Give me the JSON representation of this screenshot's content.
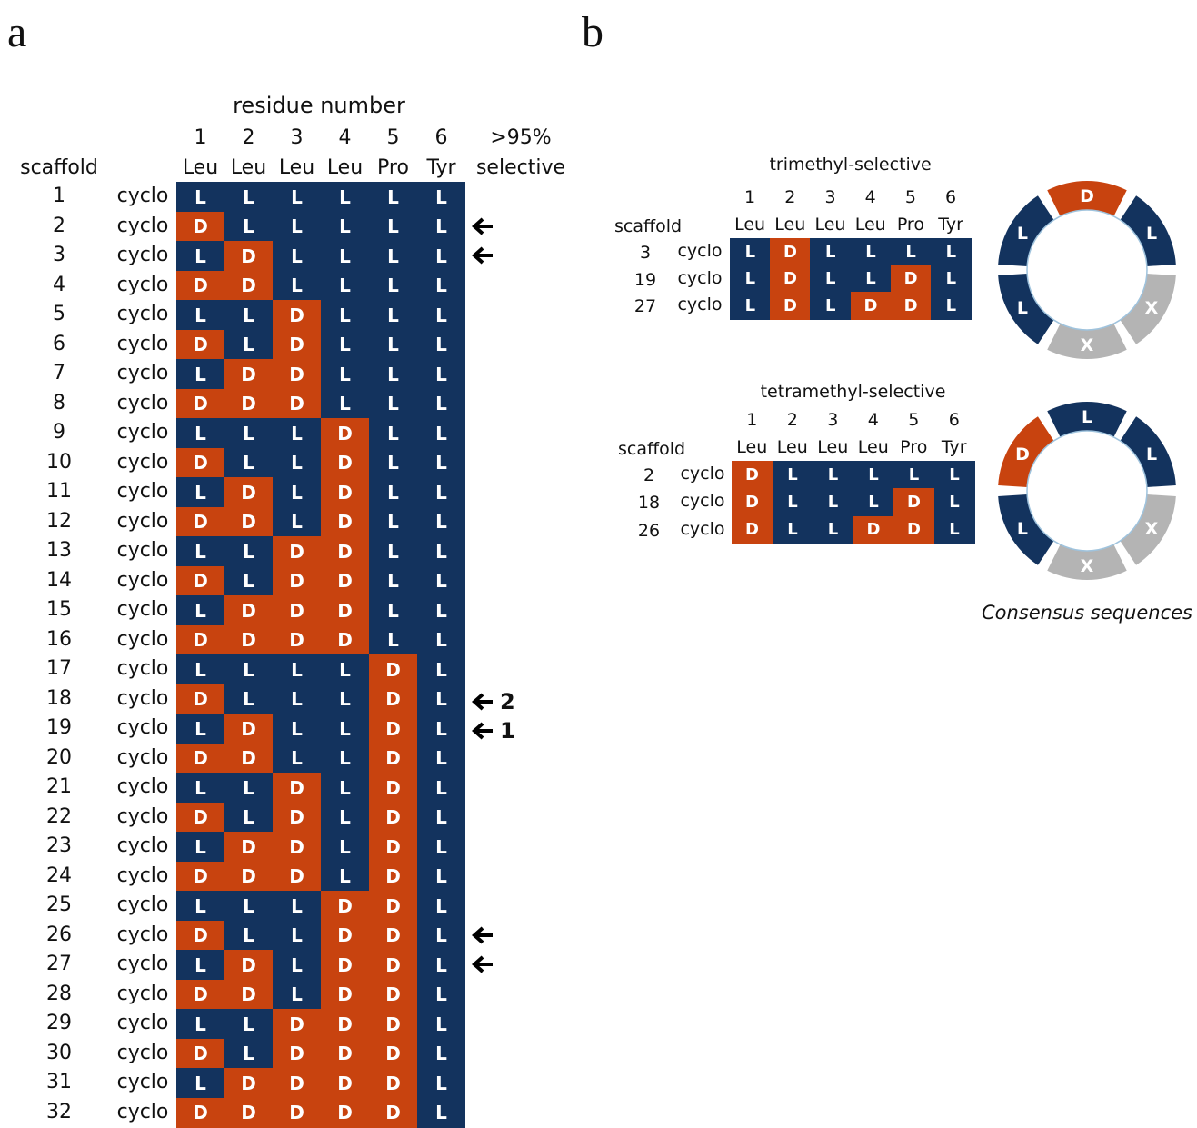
{
  "colors": {
    "D": "#c8430f",
    "L": "#13335e",
    "X": "#b4b4b4"
  },
  "panel_a": {
    "label": "a",
    "header_title": "residue number",
    "positions": [
      "1",
      "2",
      "3",
      "4",
      "5",
      "6"
    ],
    "residues": [
      "Leu",
      "Leu",
      "Leu",
      "Leu",
      "Pro",
      "Tyr"
    ],
    "scaffold_header": "scaffold",
    "selective_header_line1": ">95%",
    "selective_header_line2": "selective",
    "rows": [
      {
        "id": "1",
        "type": "cyclo",
        "config": [
          "L",
          "L",
          "L",
          "L",
          "L",
          "L"
        ],
        "arrow": false,
        "arrow_label": ""
      },
      {
        "id": "2",
        "type": "cyclo",
        "config": [
          "D",
          "L",
          "L",
          "L",
          "L",
          "L"
        ],
        "arrow": true,
        "arrow_label": ""
      },
      {
        "id": "3",
        "type": "cyclo",
        "config": [
          "L",
          "D",
          "L",
          "L",
          "L",
          "L"
        ],
        "arrow": true,
        "arrow_label": ""
      },
      {
        "id": "4",
        "type": "cyclo",
        "config": [
          "D",
          "D",
          "L",
          "L",
          "L",
          "L"
        ],
        "arrow": false,
        "arrow_label": ""
      },
      {
        "id": "5",
        "type": "cyclo",
        "config": [
          "L",
          "L",
          "D",
          "L",
          "L",
          "L"
        ],
        "arrow": false,
        "arrow_label": ""
      },
      {
        "id": "6",
        "type": "cyclo",
        "config": [
          "D",
          "L",
          "D",
          "L",
          "L",
          "L"
        ],
        "arrow": false,
        "arrow_label": ""
      },
      {
        "id": "7",
        "type": "cyclo",
        "config": [
          "L",
          "D",
          "D",
          "L",
          "L",
          "L"
        ],
        "arrow": false,
        "arrow_label": ""
      },
      {
        "id": "8",
        "type": "cyclo",
        "config": [
          "D",
          "D",
          "D",
          "L",
          "L",
          "L"
        ],
        "arrow": false,
        "arrow_label": ""
      },
      {
        "id": "9",
        "type": "cyclo",
        "config": [
          "L",
          "L",
          "L",
          "D",
          "L",
          "L"
        ],
        "arrow": false,
        "arrow_label": ""
      },
      {
        "id": "10",
        "type": "cyclo",
        "config": [
          "D",
          "L",
          "L",
          "D",
          "L",
          "L"
        ],
        "arrow": false,
        "arrow_label": ""
      },
      {
        "id": "11",
        "type": "cyclo",
        "config": [
          "L",
          "D",
          "L",
          "D",
          "L",
          "L"
        ],
        "arrow": false,
        "arrow_label": ""
      },
      {
        "id": "12",
        "type": "cyclo",
        "config": [
          "D",
          "D",
          "L",
          "D",
          "L",
          "L"
        ],
        "arrow": false,
        "arrow_label": ""
      },
      {
        "id": "13",
        "type": "cyclo",
        "config": [
          "L",
          "L",
          "D",
          "D",
          "L",
          "L"
        ],
        "arrow": false,
        "arrow_label": ""
      },
      {
        "id": "14",
        "type": "cyclo",
        "config": [
          "D",
          "L",
          "D",
          "D",
          "L",
          "L"
        ],
        "arrow": false,
        "arrow_label": ""
      },
      {
        "id": "15",
        "type": "cyclo",
        "config": [
          "L",
          "D",
          "D",
          "D",
          "L",
          "L"
        ],
        "arrow": false,
        "arrow_label": ""
      },
      {
        "id": "16",
        "type": "cyclo",
        "config": [
          "D",
          "D",
          "D",
          "D",
          "L",
          "L"
        ],
        "arrow": false,
        "arrow_label": ""
      },
      {
        "id": "17",
        "type": "cyclo",
        "config": [
          "L",
          "L",
          "L",
          "L",
          "D",
          "L"
        ],
        "arrow": false,
        "arrow_label": ""
      },
      {
        "id": "18",
        "type": "cyclo",
        "config": [
          "D",
          "L",
          "L",
          "L",
          "D",
          "L"
        ],
        "arrow": true,
        "arrow_label": "2"
      },
      {
        "id": "19",
        "type": "cyclo",
        "config": [
          "L",
          "D",
          "L",
          "L",
          "D",
          "L"
        ],
        "arrow": true,
        "arrow_label": "1"
      },
      {
        "id": "20",
        "type": "cyclo",
        "config": [
          "D",
          "D",
          "L",
          "L",
          "D",
          "L"
        ],
        "arrow": false,
        "arrow_label": ""
      },
      {
        "id": "21",
        "type": "cyclo",
        "config": [
          "L",
          "L",
          "D",
          "L",
          "D",
          "L"
        ],
        "arrow": false,
        "arrow_label": ""
      },
      {
        "id": "22",
        "type": "cyclo",
        "config": [
          "D",
          "L",
          "D",
          "L",
          "D",
          "L"
        ],
        "arrow": false,
        "arrow_label": ""
      },
      {
        "id": "23",
        "type": "cyclo",
        "config": [
          "L",
          "D",
          "D",
          "L",
          "D",
          "L"
        ],
        "arrow": false,
        "arrow_label": ""
      },
      {
        "id": "24",
        "type": "cyclo",
        "config": [
          "D",
          "D",
          "D",
          "L",
          "D",
          "L"
        ],
        "arrow": false,
        "arrow_label": ""
      },
      {
        "id": "25",
        "type": "cyclo",
        "config": [
          "L",
          "L",
          "L",
          "D",
          "D",
          "L"
        ],
        "arrow": false,
        "arrow_label": ""
      },
      {
        "id": "26",
        "type": "cyclo",
        "config": [
          "D",
          "L",
          "L",
          "D",
          "D",
          "L"
        ],
        "arrow": true,
        "arrow_label": ""
      },
      {
        "id": "27",
        "type": "cyclo",
        "config": [
          "L",
          "D",
          "L",
          "D",
          "D",
          "L"
        ],
        "arrow": true,
        "arrow_label": ""
      },
      {
        "id": "28",
        "type": "cyclo",
        "config": [
          "D",
          "D",
          "L",
          "D",
          "D",
          "L"
        ],
        "arrow": false,
        "arrow_label": ""
      },
      {
        "id": "29",
        "type": "cyclo",
        "config": [
          "L",
          "L",
          "D",
          "D",
          "D",
          "L"
        ],
        "arrow": false,
        "arrow_label": ""
      },
      {
        "id": "30",
        "type": "cyclo",
        "config": [
          "D",
          "L",
          "D",
          "D",
          "D",
          "L"
        ],
        "arrow": false,
        "arrow_label": ""
      },
      {
        "id": "31",
        "type": "cyclo",
        "config": [
          "L",
          "D",
          "D",
          "D",
          "D",
          "L"
        ],
        "arrow": false,
        "arrow_label": ""
      },
      {
        "id": "32",
        "type": "cyclo",
        "config": [
          "D",
          "D",
          "D",
          "D",
          "D",
          "L"
        ],
        "arrow": false,
        "arrow_label": ""
      }
    ]
  },
  "panel_b": {
    "label": "b",
    "tables": [
      {
        "title": "trimethyl-selective",
        "scaffold_header": "scaffold",
        "positions": [
          "1",
          "2",
          "3",
          "4",
          "5",
          "6"
        ],
        "residues": [
          "Leu",
          "Leu",
          "Leu",
          "Leu",
          "Pro",
          "Tyr"
        ],
        "rows": [
          {
            "id": "3",
            "type": "cyclo",
            "config": [
              "L",
              "D",
              "L",
              "L",
              "L",
              "L"
            ]
          },
          {
            "id": "19",
            "type": "cyclo",
            "config": [
              "L",
              "D",
              "L",
              "L",
              "D",
              "L"
            ]
          },
          {
            "id": "27",
            "type": "cyclo",
            "config": [
              "L",
              "D",
              "L",
              "D",
              "D",
              "L"
            ]
          }
        ],
        "ring": [
          "D",
          "L",
          "X",
          "X",
          "L",
          "L"
        ]
      },
      {
        "title": "tetramethyl-selective",
        "scaffold_header": "scaffold",
        "positions": [
          "1",
          "2",
          "3",
          "4",
          "5",
          "6"
        ],
        "residues": [
          "Leu",
          "Leu",
          "Leu",
          "Leu",
          "Pro",
          "Tyr"
        ],
        "rows": [
          {
            "id": "2",
            "type": "cyclo",
            "config": [
              "D",
              "L",
              "L",
              "L",
              "L",
              "L"
            ]
          },
          {
            "id": "18",
            "type": "cyclo",
            "config": [
              "D",
              "L",
              "L",
              "L",
              "D",
              "L"
            ]
          },
          {
            "id": "26",
            "type": "cyclo",
            "config": [
              "D",
              "L",
              "L",
              "D",
              "D",
              "L"
            ]
          }
        ],
        "ring": [
          "L",
          "L",
          "X",
          "X",
          "L",
          "D"
        ]
      }
    ],
    "consensus_label": "Consensus sequences"
  }
}
